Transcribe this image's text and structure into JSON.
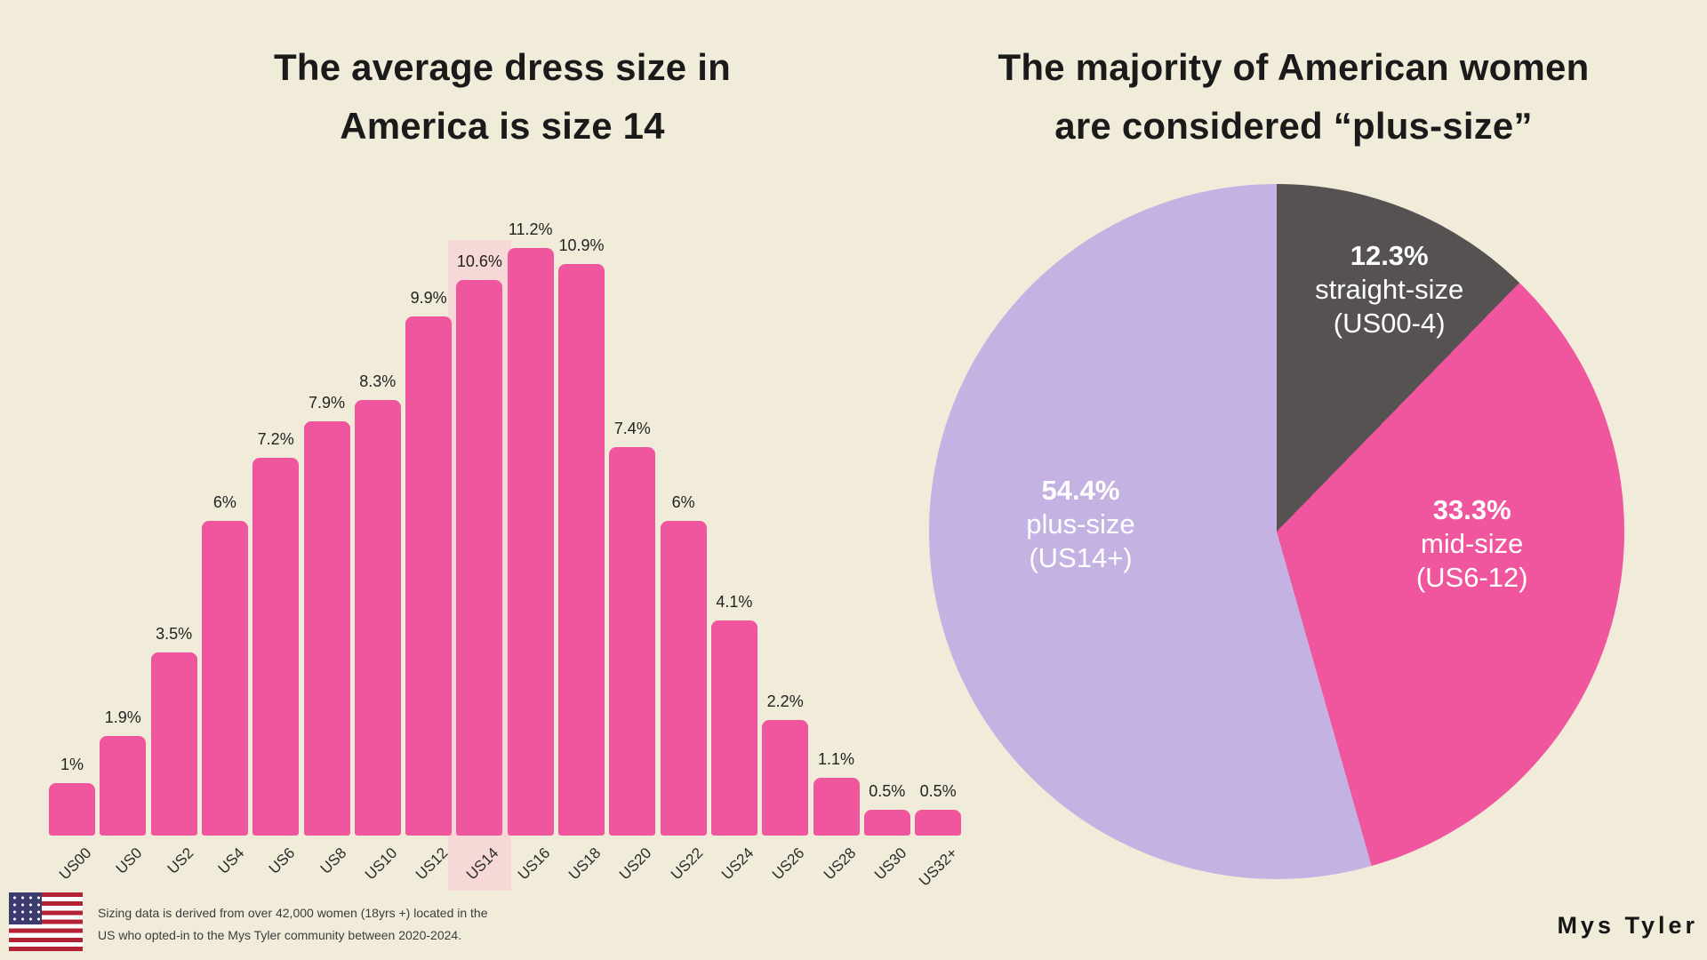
{
  "page": {
    "background_color": "#F1ECDA",
    "brand": "Mys Tyler"
  },
  "bar_section": {
    "title_line1": "The average dress size in",
    "title_line2": "America is size 14",
    "footnote_line1": "Sizing data is derived from over 42,000 women (18yrs +) located in the",
    "footnote_line2": "US who opted-in to the Mys Tyler community between 2020-2024.",
    "flag_icon": "us-flag-icon"
  },
  "pie_section": {
    "title_line1": "The majority of American women",
    "title_line2": "are considered “plus-size”"
  },
  "chart_data": [
    {
      "type": "bar",
      "title": "The average dress size in America is size 14",
      "categories": [
        "US00",
        "US0",
        "US2",
        "US4",
        "US6",
        "US8",
        "US10",
        "US12",
        "US14",
        "US16",
        "US18",
        "US20",
        "US22",
        "US24",
        "US26",
        "US28",
        "US30",
        "US32+"
      ],
      "values": [
        1,
        1.9,
        3.5,
        6,
        7.2,
        7.9,
        8.3,
        9.9,
        10.6,
        11.2,
        10.9,
        7.4,
        6,
        4.1,
        2.2,
        1.1,
        0.5,
        0.5
      ],
      "value_labels": [
        "1%",
        "1.9%",
        "3.5%",
        "6%",
        "7.2%",
        "7.9%",
        "8.3%",
        "9.9%",
        "10.6%",
        "11.2%",
        "10.9%",
        "7.4%",
        "6%",
        "4.1%",
        "2.2%",
        "1.1%",
        "0.5%",
        "0.5%"
      ],
      "highlighted_category": "US14",
      "bar_color": "#F0569D",
      "highlight_color": "#F6D8D6",
      "xlabel": "",
      "ylabel": "",
      "ylim": [
        0,
        11.2
      ],
      "grid": false,
      "value_labels_position": "above-bars",
      "x_tick_rotation_deg": -45
    },
    {
      "type": "pie",
      "title": "The majority of American women are considered “plus-size”",
      "start_angle_deg": 0,
      "direction": "clockwise",
      "legend_position": "labels-inside-slices",
      "slices": [
        {
          "pct": 12.3,
          "pct_label": "12.3%",
          "name": "straight-size",
          "range": "(US00-4)",
          "color": "#565251"
        },
        {
          "pct": 33.3,
          "pct_label": "33.3%",
          "name": "mid-size",
          "range": "(US6-12)",
          "color": "#F0569D"
        },
        {
          "pct": 54.4,
          "pct_label": "54.4%",
          "name": "plus-size",
          "range": "(US14+)",
          "color": "#C4B2E2"
        }
      ]
    }
  ]
}
